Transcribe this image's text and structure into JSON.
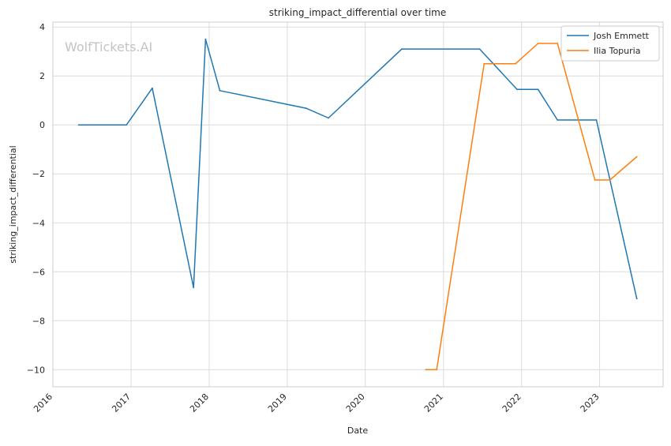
{
  "watermark": "WolfTickets.AI",
  "chart_data": {
    "type": "line",
    "title": "striking_impact_differential over time",
    "xlabel": "Date",
    "ylabel": "striking_impact_differential",
    "x_ticks": [
      "2016",
      "2017",
      "2018",
      "2019",
      "2020",
      "2021",
      "2022",
      "2023"
    ],
    "y_ticks": [
      "4",
      "2",
      "0",
      "−2",
      "−4",
      "−6",
      "−8",
      "−10"
    ],
    "ylim": [
      -10.7,
      4.2
    ],
    "xlim": [
      "2016-01-01",
      "2023-10-25"
    ],
    "grid": true,
    "legend_position": "top-right",
    "series": [
      {
        "name": "Josh Emmett",
        "color": "#1f77b4",
        "points": [
          {
            "x": "2016-05-01",
            "y": 0.0
          },
          {
            "x": "2016-12-10",
            "y": 0.0
          },
          {
            "x": "2017-04-10",
            "y": 1.5
          },
          {
            "x": "2017-10-20",
            "y": -6.65
          },
          {
            "x": "2017-12-15",
            "y": 3.5
          },
          {
            "x": "2018-02-20",
            "y": 1.4
          },
          {
            "x": "2019-03-30",
            "y": 0.68
          },
          {
            "x": "2019-07-13",
            "y": 0.28
          },
          {
            "x": "2020-06-20",
            "y": 3.1
          },
          {
            "x": "2021-06-19",
            "y": 3.1
          },
          {
            "x": "2021-12-11",
            "y": 1.45
          },
          {
            "x": "2022-03-19",
            "y": 1.45
          },
          {
            "x": "2022-06-18",
            "y": 0.2
          },
          {
            "x": "2022-12-17",
            "y": 0.2
          },
          {
            "x": "2023-06-24",
            "y": -7.1
          }
        ]
      },
      {
        "name": "Ilia Topuria",
        "color": "#ff7f0e",
        "points": [
          {
            "x": "2020-10-10",
            "y": -10.0
          },
          {
            "x": "2020-11-30",
            "y": -10.0
          },
          {
            "x": "2021-07-10",
            "y": 2.5
          },
          {
            "x": "2021-12-04",
            "y": 2.5
          },
          {
            "x": "2022-03-19",
            "y": 3.33
          },
          {
            "x": "2022-06-18",
            "y": 3.33
          },
          {
            "x": "2022-12-10",
            "y": -2.25
          },
          {
            "x": "2023-02-18",
            "y": -2.25
          },
          {
            "x": "2023-06-24",
            "y": -1.3
          }
        ]
      }
    ]
  }
}
